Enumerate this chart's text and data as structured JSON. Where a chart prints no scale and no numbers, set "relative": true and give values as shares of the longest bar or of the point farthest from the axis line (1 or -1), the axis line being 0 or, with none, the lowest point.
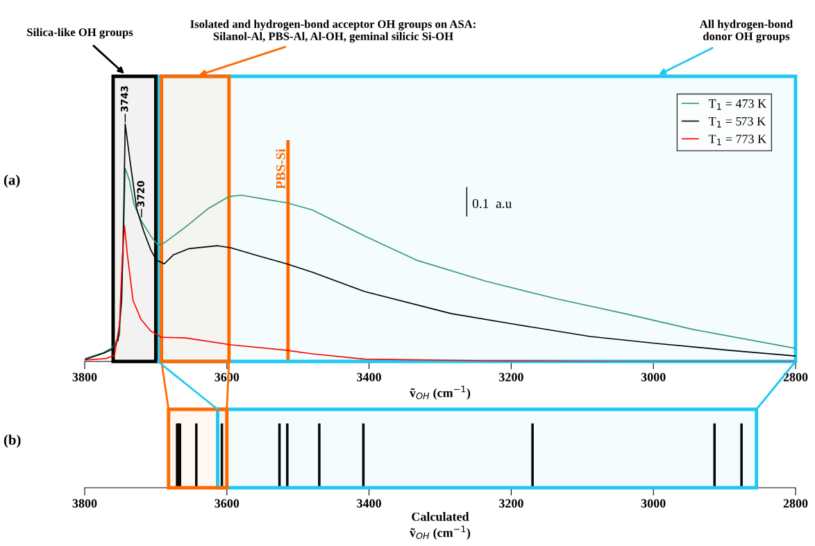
{
  "chart_data": [
    {
      "type": "line",
      "relative": true,
      "xlabel": "ṽ$_{OH}$ (cm$^{−1}$)",
      "xlim": [
        3800,
        2800
      ],
      "xticks": [
        3800,
        3600,
        3400,
        3200,
        3000,
        2800
      ],
      "grid": false,
      "legend": "top right",
      "series": [
        {
          "name": "T$_{1}$ = 473 K",
          "color": "#3a9a6a",
          "x": [
            3799,
            3773,
            3760,
            3751,
            3746,
            3743,
            3737,
            3731,
            3721,
            3707,
            3697,
            3688,
            3658,
            3626,
            3597,
            3580,
            3545,
            3516,
            3480,
            3406,
            3333,
            3236,
            3138,
            3040,
            2943,
            2800
          ],
          "values": [
            0.012,
            0.038,
            0.061,
            0.111,
            0.449,
            0.813,
            0.761,
            0.665,
            0.595,
            0.528,
            0.49,
            0.499,
            0.566,
            0.644,
            0.694,
            0.7,
            0.682,
            0.668,
            0.638,
            0.528,
            0.426,
            0.338,
            0.265,
            0.201,
            0.134,
            0.055
          ]
        },
        {
          "name": "T$_{1}$ = 573 K",
          "color": "#000000",
          "x": [
            3799,
            3773,
            3761,
            3753,
            3748,
            3745,
            3743,
            3736,
            3727,
            3717,
            3707,
            3699,
            3688,
            3675,
            3653,
            3613,
            3594,
            3561,
            3516,
            3480,
            3406,
            3284,
            3196,
            3089,
            2996,
            2894,
            2800
          ],
          "values": [
            0.009,
            0.035,
            0.052,
            0.09,
            0.257,
            0.644,
            1.0,
            0.84,
            0.644,
            0.548,
            0.469,
            0.426,
            0.411,
            0.449,
            0.475,
            0.487,
            0.478,
            0.449,
            0.411,
            0.376,
            0.294,
            0.201,
            0.157,
            0.105,
            0.076,
            0.047,
            0.023
          ]
        },
        {
          "name": "T$_{1}$ = 773 K",
          "color": "#ff0000",
          "x": [
            3799,
            3770,
            3758,
            3751,
            3747,
            3744,
            3740,
            3732,
            3721,
            3707,
            3692,
            3658,
            3594,
            3516,
            3480,
            3406,
            3236,
            3040,
            2800
          ],
          "values": [
            0.006,
            0.012,
            0.026,
            0.157,
            0.449,
            0.571,
            0.449,
            0.257,
            0.178,
            0.128,
            0.102,
            0.099,
            0.07,
            0.047,
            0.032,
            0.01,
            0.003,
            0.0,
            0.0
          ]
        }
      ],
      "ref_lines": [
        {
          "axis": "x",
          "value": 3514,
          "label": "PBS-Si",
          "color": "#ff6a00"
        }
      ],
      "bands": [
        {
          "axis": "x",
          "from": 3760,
          "to": 3700,
          "label": "Silica-like OH groups",
          "color": "#000000"
        },
        {
          "axis": "x",
          "from": 3692,
          "to": 3597,
          "label": "Isolated and hydrogen-bond acceptor OH groups on ASA:\nSilanol-Al, PBS-Al, Al-OH, geminal silicic Si-OH",
          "color": "#ff6a00"
        },
        {
          "axis": "x",
          "from": 3697,
          "to": 2800,
          "label": "All hydrogen-bond\ndonor OH groups",
          "color": "#1ec8f0"
        }
      ],
      "annotations": [
        "(a)",
        {
          "text": "3743",
          "x": 3743,
          "y": 1.0
        },
        {
          "text": "3720",
          "x": 3720,
          "y": 0.6
        },
        "0.1  a.u"
      ]
    },
    {
      "type": "bar",
      "relative": true,
      "xlabel": "Calculated\nṽ$_{OH}$ (cm$^{−1}$)",
      "xlim": [
        3800,
        2800
      ],
      "xticks": [
        3800,
        3600,
        3400,
        3200,
        3000,
        2800
      ],
      "color": "#000000",
      "x": [
        3670,
        3668,
        3666,
        3643,
        3607,
        3526,
        3515,
        3470,
        3408,
        3170,
        2914,
        2876
      ],
      "values": [
        1,
        1,
        1,
        1,
        1,
        1,
        1,
        1,
        1,
        1,
        1,
        1
      ],
      "bands": [
        {
          "axis": "x",
          "from": 3682,
          "to": 3600,
          "color": "#ff6a00"
        },
        {
          "axis": "x",
          "from": 3613,
          "to": 2855,
          "color": "#1ec8f0"
        }
      ],
      "annotations": [
        "(b)"
      ]
    }
  ]
}
